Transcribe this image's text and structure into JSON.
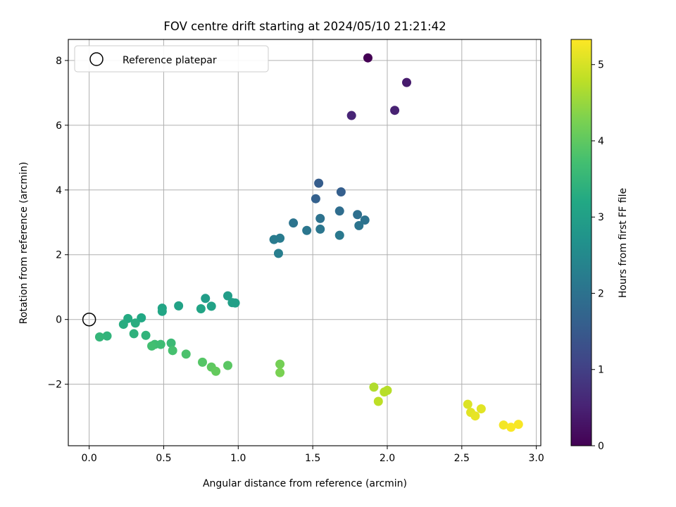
{
  "chart_data": {
    "type": "scatter",
    "title": "FOV centre drift starting at 2024/05/10 21:21:42",
    "xlabel": "Angular distance from reference (arcmin)",
    "ylabel": "Rotation from reference (arcmin)",
    "xlim": [
      -0.14,
      3.03
    ],
    "ylim": [
      -3.9,
      8.65
    ],
    "xticks": [
      0.0,
      0.5,
      1.0,
      1.5,
      2.0,
      2.5,
      3.0
    ],
    "xtick_labels": [
      "0.0",
      "0.5",
      "1.0",
      "1.5",
      "2.0",
      "2.5",
      "3.0"
    ],
    "yticks": [
      -2,
      0,
      2,
      4,
      6,
      8
    ],
    "ytick_labels": [
      "−2",
      "0",
      "2",
      "4",
      "6",
      "8"
    ],
    "grid": true,
    "legend": {
      "position": "top-left",
      "entries": [
        "Reference platepar"
      ]
    },
    "reference_point": {
      "x": 0.0,
      "y": 0.0
    },
    "colorbar": {
      "label": "Hours from first FF file",
      "colormap": "viridis",
      "range": [
        0,
        5.33
      ],
      "ticks": [
        0,
        1,
        2,
        3,
        4,
        5
      ],
      "tick_labels": [
        "0",
        "1",
        "2",
        "3",
        "4",
        "5"
      ]
    },
    "points": [
      {
        "x": 1.87,
        "y": 8.08,
        "c": 0.0
      },
      {
        "x": 2.13,
        "y": 7.32,
        "c": 0.4
      },
      {
        "x": 2.05,
        "y": 6.46,
        "c": 0.5
      },
      {
        "x": 1.76,
        "y": 6.3,
        "c": 0.55
      },
      {
        "x": 1.54,
        "y": 4.21,
        "c": 1.55
      },
      {
        "x": 1.69,
        "y": 3.94,
        "c": 1.6
      },
      {
        "x": 1.52,
        "y": 3.73,
        "c": 1.65
      },
      {
        "x": 1.68,
        "y": 3.35,
        "c": 1.9
      },
      {
        "x": 1.8,
        "y": 3.24,
        "c": 1.95
      },
      {
        "x": 1.55,
        "y": 3.12,
        "c": 2.0
      },
      {
        "x": 1.85,
        "y": 3.07,
        "c": 2.0
      },
      {
        "x": 1.37,
        "y": 2.98,
        "c": 2.05
      },
      {
        "x": 1.81,
        "y": 2.9,
        "c": 2.05
      },
      {
        "x": 1.55,
        "y": 2.79,
        "c": 2.1
      },
      {
        "x": 1.46,
        "y": 2.75,
        "c": 2.1
      },
      {
        "x": 1.68,
        "y": 2.6,
        "c": 2.15
      },
      {
        "x": 1.28,
        "y": 2.51,
        "c": 2.2
      },
      {
        "x": 1.24,
        "y": 2.47,
        "c": 2.2
      },
      {
        "x": 1.27,
        "y": 2.04,
        "c": 2.25
      },
      {
        "x": 0.93,
        "y": 0.73,
        "c": 2.95
      },
      {
        "x": 0.78,
        "y": 0.65,
        "c": 2.95
      },
      {
        "x": 0.96,
        "y": 0.52,
        "c": 3.0
      },
      {
        "x": 0.98,
        "y": 0.51,
        "c": 3.0
      },
      {
        "x": 0.6,
        "y": 0.42,
        "c": 3.05
      },
      {
        "x": 0.82,
        "y": 0.41,
        "c": 3.05
      },
      {
        "x": 0.49,
        "y": 0.35,
        "c": 3.1
      },
      {
        "x": 0.75,
        "y": 0.33,
        "c": 3.1
      },
      {
        "x": 0.49,
        "y": 0.25,
        "c": 3.15
      },
      {
        "x": 0.35,
        "y": 0.05,
        "c": 3.2
      },
      {
        "x": 0.26,
        "y": 0.03,
        "c": 3.25
      },
      {
        "x": 0.31,
        "y": -0.11,
        "c": 3.3
      },
      {
        "x": 0.23,
        "y": -0.15,
        "c": 3.3
      },
      {
        "x": 0.3,
        "y": -0.44,
        "c": 3.4
      },
      {
        "x": 0.38,
        "y": -0.49,
        "c": 3.45
      },
      {
        "x": 0.12,
        "y": -0.51,
        "c": 3.45
      },
      {
        "x": 0.07,
        "y": -0.54,
        "c": 3.5
      },
      {
        "x": 0.55,
        "y": -0.73,
        "c": 3.6
      },
      {
        "x": 0.44,
        "y": -0.77,
        "c": 3.65
      },
      {
        "x": 0.48,
        "y": -0.77,
        "c": 3.65
      },
      {
        "x": 0.42,
        "y": -0.82,
        "c": 3.7
      },
      {
        "x": 0.56,
        "y": -0.96,
        "c": 3.75
      },
      {
        "x": 0.65,
        "y": -1.07,
        "c": 3.8
      },
      {
        "x": 0.76,
        "y": -1.32,
        "c": 3.9
      },
      {
        "x": 0.93,
        "y": -1.42,
        "c": 3.95
      },
      {
        "x": 0.82,
        "y": -1.47,
        "c": 4.0
      },
      {
        "x": 0.85,
        "y": -1.6,
        "c": 4.05
      },
      {
        "x": 1.28,
        "y": -1.38,
        "c": 4.2
      },
      {
        "x": 1.28,
        "y": -1.64,
        "c": 4.25
      },
      {
        "x": 1.91,
        "y": -2.09,
        "c": 4.7
      },
      {
        "x": 2.0,
        "y": -2.19,
        "c": 4.75
      },
      {
        "x": 1.98,
        "y": -2.24,
        "c": 4.75
      },
      {
        "x": 1.94,
        "y": -2.53,
        "c": 4.8
      },
      {
        "x": 2.54,
        "y": -2.62,
        "c": 5.05
      },
      {
        "x": 2.63,
        "y": -2.76,
        "c": 5.1
      },
      {
        "x": 2.56,
        "y": -2.87,
        "c": 5.1
      },
      {
        "x": 2.59,
        "y": -2.98,
        "c": 5.15
      },
      {
        "x": 2.78,
        "y": -3.26,
        "c": 5.25
      },
      {
        "x": 2.88,
        "y": -3.24,
        "c": 5.28
      },
      {
        "x": 2.83,
        "y": -3.33,
        "c": 5.3
      }
    ]
  }
}
